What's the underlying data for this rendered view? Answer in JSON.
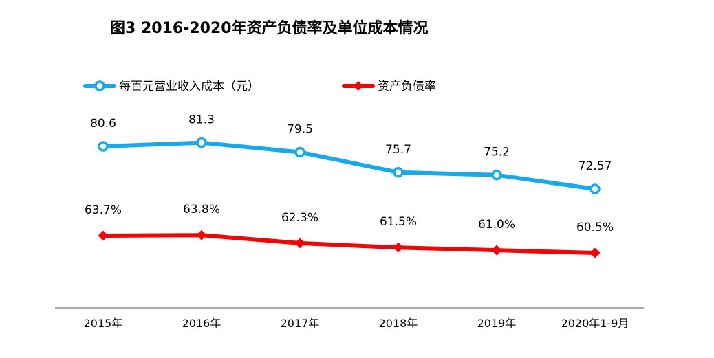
{
  "chart_data": {
    "type": "line",
    "title": "图3  2016-2020年资产负债率及单位成本情况",
    "categories": [
      "2015年",
      "2016年",
      "2017年",
      "2018年",
      "2019年",
      "2020年1-9月"
    ],
    "series": [
      {
        "name": "每百元营业收入成本（元）",
        "values": [
          80.6,
          81.3,
          79.5,
          75.7,
          75.2,
          72.57
        ],
        "labels": [
          "80.6",
          "81.3",
          "79.5",
          "75.7",
          "75.2",
          "72.57"
        ],
        "color": "#16A9EC",
        "marker": "hollow-circle"
      },
      {
        "name": "资产负债率",
        "values": [
          63.7,
          63.8,
          62.3,
          61.5,
          61.0,
          60.5
        ],
        "labels": [
          "63.7%",
          "63.8%",
          "62.3%",
          "61.5%",
          "61.0%",
          "60.5%"
        ],
        "color": "#F20505",
        "marker": "diamond"
      }
    ],
    "legend_position": "top",
    "grid": false
  }
}
